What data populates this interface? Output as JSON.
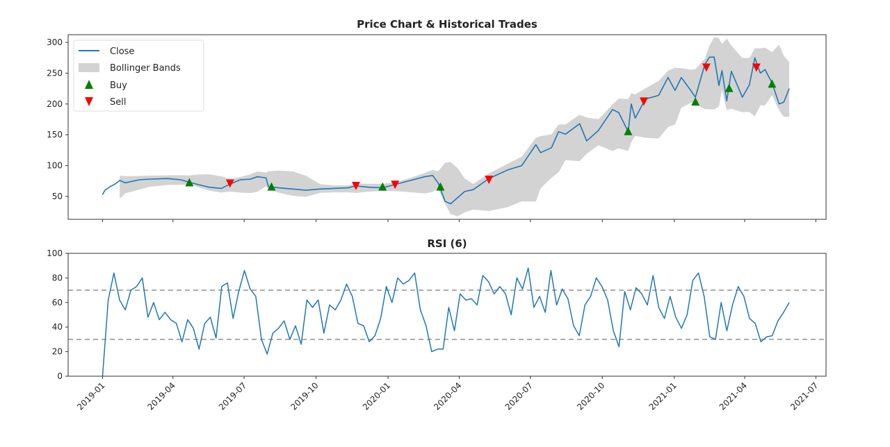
{
  "chart_data": [
    {
      "type": "line",
      "title": "Price Chart & Historical Trades",
      "xlim": [
        "2018-11-18",
        "2021-07-14"
      ],
      "ylim": [
        12.8,
        312.4
      ],
      "yticks": [
        50,
        100,
        150,
        200,
        250,
        300
      ],
      "xticks": [
        "2019-01",
        "2019-04",
        "2019-07",
        "2019-10",
        "2020-01",
        "2020-04",
        "2020-07",
        "2020-10",
        "2021-01",
        "2021-04",
        "2021-07"
      ],
      "legend": {
        "placement": "top-left",
        "entries": [
          "Close",
          "Bollinger Bands",
          "Buy",
          "Sell"
        ]
      },
      "colors": {
        "close": "#1f77b4",
        "bands": "#d3d3d3",
        "buy": "#008000",
        "sell": "#ff0000"
      },
      "bollinger_window": 5,
      "close": {
        "dates": [
          "2019-01-01",
          "2019-01-04",
          "2019-01-11",
          "2019-01-17",
          "2019-01-23",
          "2019-01-30",
          "2019-02-17",
          "2019-03-02",
          "2019-03-25",
          "2019-04-11",
          "2019-04-22",
          "2019-05-04",
          "2019-05-17",
          "2019-06-02",
          "2019-06-13",
          "2019-06-26",
          "2019-07-09",
          "2019-07-18",
          "2019-07-29",
          "2019-08-01",
          "2019-08-14",
          "2019-09-01",
          "2019-09-18",
          "2019-10-06",
          "2019-10-24",
          "2019-11-11",
          "2019-11-21",
          "2019-12-07",
          "2019-12-25",
          "2020-01-12",
          "2020-01-30",
          "2020-02-17",
          "2020-02-27",
          "2020-03-05",
          "2020-03-14",
          "2020-03-21",
          "2020-03-30",
          "2020-04-08",
          "2020-04-19",
          "2020-05-09",
          "2020-06-02",
          "2020-06-20",
          "2020-07-08",
          "2020-07-14",
          "2020-07-28",
          "2020-08-06",
          "2020-08-15",
          "2020-09-02",
          "2020-09-11",
          "2020-09-26",
          "2020-10-14",
          "2020-10-22",
          "2020-11-03",
          "2020-11-07",
          "2020-11-12",
          "2020-11-25",
          "2020-12-12",
          "2020-12-24",
          "2021-01-02",
          "2021-01-10",
          "2021-01-22",
          "2021-01-28",
          "2021-02-09",
          "2021-02-15",
          "2021-02-21",
          "2021-02-27",
          "2021-03-03",
          "2021-03-09",
          "2021-03-15",
          "2021-03-29",
          "2021-04-07",
          "2021-04-14",
          "2021-04-21",
          "2021-04-27",
          "2021-05-06",
          "2021-05-15",
          "2021-05-21",
          "2021-05-28"
        ],
        "values": [
          53,
          60,
          66,
          70,
          76,
          72,
          77,
          78,
          79,
          77,
          73,
          69,
          65,
          63,
          70,
          77,
          78,
          82,
          80,
          66,
          64,
          62,
          60,
          62,
          63,
          64,
          67,
          65,
          64,
          70,
          76,
          82,
          84,
          72,
          42,
          38,
          48,
          58,
          61,
          79,
          93,
          100,
          134,
          121,
          129,
          155,
          151,
          168,
          140,
          157,
          191,
          186,
          155,
          200,
          177,
          208,
          214,
          243,
          222,
          243,
          222,
          211,
          264,
          276,
          276,
          230,
          254,
          205,
          253,
          211,
          231,
          275,
          250,
          256,
          234,
          200,
          203,
          225
        ]
      },
      "buy": [
        {
          "date": "2019-04-22",
          "price": 72
        },
        {
          "date": "2019-08-05",
          "price": 65
        },
        {
          "date": "2019-12-25",
          "price": 65
        },
        {
          "date": "2020-03-08",
          "price": 65
        },
        {
          "date": "2020-11-03",
          "price": 155
        },
        {
          "date": "2021-01-28",
          "price": 203
        },
        {
          "date": "2021-03-12",
          "price": 225
        },
        {
          "date": "2021-05-06",
          "price": 232
        }
      ],
      "sell": [
        {
          "date": "2019-06-13",
          "price": 72
        },
        {
          "date": "2019-11-21",
          "price": 68
        },
        {
          "date": "2020-01-10",
          "price": 70
        },
        {
          "date": "2020-05-09",
          "price": 78
        },
        {
          "date": "2020-11-23",
          "price": 205
        },
        {
          "date": "2021-02-11",
          "price": 260
        },
        {
          "date": "2021-04-16",
          "price": 260
        }
      ]
    },
    {
      "type": "line",
      "title": "RSI (6)",
      "xlim": [
        "2018-11-18",
        "2021-07-14"
      ],
      "ylim": [
        0,
        100
      ],
      "yticks": [
        0,
        20,
        40,
        60,
        80,
        100
      ],
      "xticks": [
        "2019-01",
        "2019-04",
        "2019-07",
        "2019-10",
        "2020-01",
        "2020-04",
        "2020-07",
        "2020-10",
        "2021-01",
        "2021-04",
        "2021-07"
      ],
      "thresholds": [
        70,
        30
      ],
      "color": "#1f77b4",
      "rsi": {
        "start": "2019-01-01",
        "end": "2021-05-28",
        "values": [
          0,
          62,
          84,
          62,
          54,
          70,
          73,
          80,
          48,
          60,
          46,
          52,
          46,
          43,
          28,
          46,
          39,
          22,
          43,
          48,
          31,
          73,
          76,
          47,
          69,
          86,
          71,
          65,
          30,
          18,
          35,
          39,
          45,
          30,
          41,
          26,
          62,
          56,
          62,
          35,
          58,
          54,
          62,
          75,
          65,
          43,
          41,
          28,
          33,
          47,
          73,
          60,
          80,
          75,
          78,
          84,
          54,
          41,
          20,
          22,
          22,
          56,
          37,
          67,
          62,
          63,
          58,
          82,
          77,
          67,
          73,
          67,
          50,
          80,
          71,
          88,
          56,
          65,
          52,
          86,
          58,
          71,
          63,
          41,
          33,
          58,
          65,
          80,
          73,
          62,
          37,
          24,
          69,
          54,
          72,
          67,
          58,
          82,
          56,
          47,
          65,
          48,
          39,
          50,
          78,
          84,
          65,
          32,
          30,
          60,
          37,
          58,
          73,
          65,
          47,
          43,
          28,
          32,
          33,
          45,
          52,
          60
        ]
      }
    }
  ]
}
